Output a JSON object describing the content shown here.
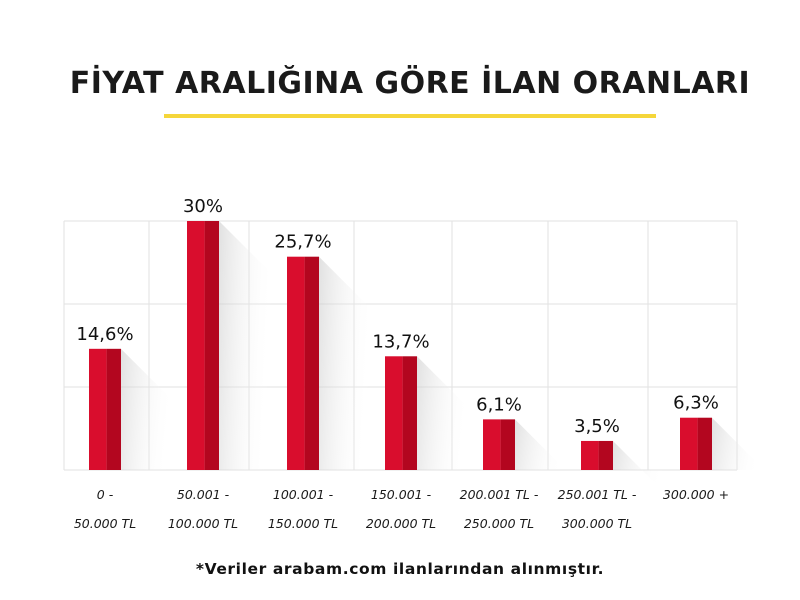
{
  "title": "FİYAT ARALIĞINA GÖRE İLAN ORANLARI",
  "footnote": "*Veriler arabam.com ilanlarından alınmıştır.",
  "colors": {
    "bar_main": "#d90d2d",
    "bar_dark": "#b3061f",
    "underline": "#f5d63a",
    "grid": "#e2e2e2"
  },
  "chart_data": {
    "type": "bar",
    "title": "FİYAT ARALIĞINA GÖRE İLAN ORANLARI",
    "xlabel": "",
    "ylabel": "",
    "ylim": [
      0,
      30
    ],
    "grid": true,
    "categories": [
      [
        "0 -",
        "50.000 TL"
      ],
      [
        "50.001 -",
        "100.000 TL"
      ],
      [
        "100.001 -",
        "150.000 TL"
      ],
      [
        "150.001 -",
        "200.000 TL"
      ],
      [
        "200.001 TL -",
        "250.000 TL"
      ],
      [
        "250.001 TL -",
        "300.000 TL"
      ],
      [
        "300.000 +"
      ]
    ],
    "values": [
      14.6,
      30,
      25.7,
      13.7,
      6.1,
      3.5,
      6.3
    ],
    "value_labels": [
      "14,6%",
      "30%",
      "25,7%",
      "13,7%",
      "6,1%",
      "3,5%",
      "6,3%"
    ]
  }
}
